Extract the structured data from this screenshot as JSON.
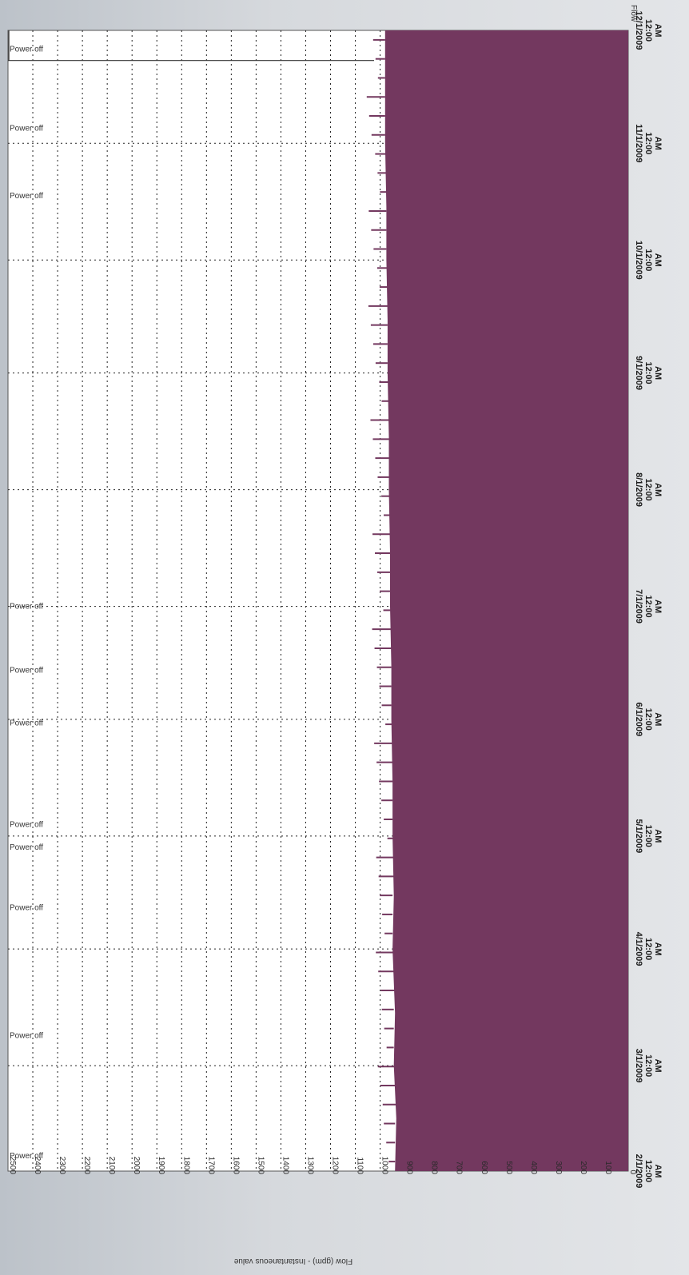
{
  "chart_data": {
    "type": "area",
    "title": "",
    "orientation": "rotated-90-clockwise",
    "ylabel": "Flow (gpm) - Instantaneous value",
    "legend": [
      "Flow"
    ],
    "ylim": [
      0,
      2500
    ],
    "grid": true,
    "y_ticks": [
      2500,
      2400,
      2300,
      2200,
      2100,
      2000,
      1900,
      1800,
      1700,
      1600,
      1500,
      1400,
      1300,
      1200,
      1100,
      1000,
      900,
      800,
      700,
      600,
      500,
      400,
      300,
      200,
      100,
      0
    ],
    "x_ticks": [
      {
        "date": "2/1/2009",
        "time": "12:00",
        "ampm": "AM"
      },
      {
        "date": "3/1/2009",
        "time": "12:00",
        "ampm": "AM"
      },
      {
        "date": "4/1/2009",
        "time": "12:00",
        "ampm": "AM"
      },
      {
        "date": "5/1/2009",
        "time": "12:00",
        "ampm": "AM"
      },
      {
        "date": "6/1/2009",
        "time": "12:00",
        "ampm": "AM"
      },
      {
        "date": "7/1/2009",
        "time": "12:00",
        "ampm": "AM"
      },
      {
        "date": "8/1/2009",
        "time": "12:00",
        "ampm": "AM"
      },
      {
        "date": "9/1/2009",
        "time": "12:00",
        "ampm": "AM"
      },
      {
        "date": "10/1/2009",
        "time": "12:00",
        "ampm": "AM"
      },
      {
        "date": "11/1/2009",
        "time": "12:00",
        "ampm": "AM"
      },
      {
        "date": "12/1/2009",
        "time": "12:00",
        "ampm": "AM"
      }
    ],
    "x_range": [
      "2/1/2009",
      "12/1/2009"
    ],
    "series": [
      {
        "name": "Flow",
        "color": "#73385f",
        "points": [
          {
            "x": "2/1/2009",
            "y": 940
          },
          {
            "x": "2/15/2009",
            "y": 935
          },
          {
            "x": "3/1/2009",
            "y": 945
          },
          {
            "x": "3/15/2009",
            "y": 940
          },
          {
            "x": "4/1/2009",
            "y": 950
          },
          {
            "x": "4/15/2009",
            "y": 945
          },
          {
            "x": "5/1/2009",
            "y": 950
          },
          {
            "x": "5/15/2009",
            "y": 950
          },
          {
            "x": "6/1/2009",
            "y": 955
          },
          {
            "x": "6/15/2009",
            "y": 955
          },
          {
            "x": "7/1/2009",
            "y": 960
          },
          {
            "x": "7/15/2009",
            "y": 960
          },
          {
            "x": "8/1/2009",
            "y": 965
          },
          {
            "x": "8/15/2009",
            "y": 965
          },
          {
            "x": "9/1/2009",
            "y": 970
          },
          {
            "x": "9/15/2009",
            "y": 970
          },
          {
            "x": "10/1/2009",
            "y": 975
          },
          {
            "x": "10/15/2009",
            "y": 975
          },
          {
            "x": "11/1/2009",
            "y": 980
          },
          {
            "x": "11/15/2009",
            "y": 980
          },
          {
            "x": "12/1/2009",
            "y": 980
          }
        ]
      }
    ],
    "threshold": {
      "y": 2500,
      "start": "11/23/2009",
      "end": "12/1/2009"
    },
    "annotations": [
      {
        "label": "Power off",
        "date": "2/5/2009"
      },
      {
        "label": "Power off",
        "date": "3/9/2009"
      },
      {
        "label": "Power off",
        "date": "4/12/2009"
      },
      {
        "label": "Power off",
        "date": "4/28/2009"
      },
      {
        "label": "Power off",
        "date": "5/4/2009"
      },
      {
        "label": "Power off",
        "date": "5/31/2009"
      },
      {
        "label": "Power off",
        "date": "6/14/2009"
      },
      {
        "label": "Power off",
        "date": "7/1/2009"
      },
      {
        "label": "Power off",
        "date": "10/18/2009"
      },
      {
        "label": "Power off",
        "date": "11/5/2009"
      },
      {
        "label": "Power off",
        "date": "11/26/2009"
      }
    ]
  }
}
